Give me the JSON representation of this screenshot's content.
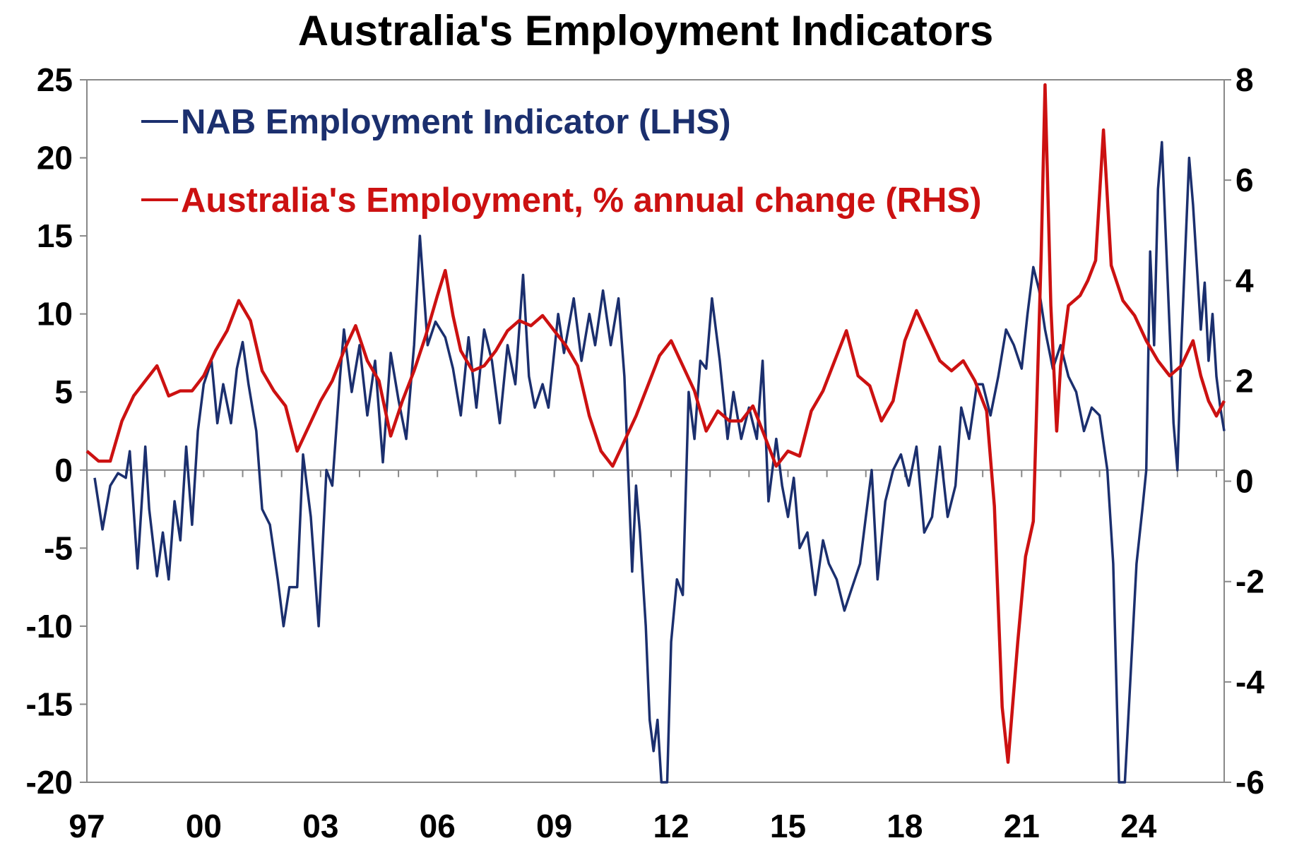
{
  "title": "Australia's Employment Indicators",
  "colors": {
    "nab": "#1b2f6e",
    "employment": "#cc1111",
    "axis": "#888888"
  },
  "chart_data": {
    "type": "line",
    "title": "Australia's Employment Indicators",
    "xlabel": "",
    "ylabel_left": "",
    "ylabel_right": "",
    "x_range": [
      1997.0,
      2026.2
    ],
    "x_ticks": [
      {
        "x": 1997,
        "label": "97"
      },
      {
        "x": 2000,
        "label": "00"
      },
      {
        "x": 2003,
        "label": "03"
      },
      {
        "x": 2006,
        "label": "06"
      },
      {
        "x": 2009,
        "label": "09"
      },
      {
        "x": 2012,
        "label": "12"
      },
      {
        "x": 2015,
        "label": "15"
      },
      {
        "x": 2018,
        "label": "18"
      },
      {
        "x": 2021,
        "label": "21"
      },
      {
        "x": 2024,
        "label": "24"
      }
    ],
    "ylim_left": [
      -20,
      25
    ],
    "ylim_right": [
      -6,
      8
    ],
    "yticks_left": [
      "25",
      "20",
      "15",
      "10",
      "5",
      "0",
      "-5",
      "-10",
      "-15",
      "-20"
    ],
    "yticks_right": [
      "8",
      "6",
      "4",
      "2",
      "0",
      "-2",
      "-4",
      "-6"
    ],
    "legend_position": "top-left",
    "grid": false,
    "series": [
      {
        "name": "NAB Employment Indicator (LHS)",
        "axis": "left",
        "color": "#1b2f6e",
        "points": [
          [
            1997.2,
            -0.5
          ],
          [
            1997.4,
            -3.8
          ],
          [
            1997.6,
            -1
          ],
          [
            1997.8,
            -0.2
          ],
          [
            1998.0,
            -0.5
          ],
          [
            1998.1,
            1.2
          ],
          [
            1998.3,
            -6.3
          ],
          [
            1998.5,
            1.5
          ],
          [
            1998.6,
            -2.5
          ],
          [
            1998.8,
            -6.8
          ],
          [
            1998.95,
            -4
          ],
          [
            1999.1,
            -7
          ],
          [
            1999.25,
            -2
          ],
          [
            1999.4,
            -4.5
          ],
          [
            1999.55,
            1.5
          ],
          [
            1999.7,
            -3.5
          ],
          [
            1999.85,
            2.5
          ],
          [
            2000.0,
            5.5
          ],
          [
            2000.2,
            7
          ],
          [
            2000.35,
            3
          ],
          [
            2000.5,
            5.5
          ],
          [
            2000.7,
            3
          ],
          [
            2000.85,
            6.5
          ],
          [
            2001.0,
            8.2
          ],
          [
            2001.15,
            5.5
          ],
          [
            2001.35,
            2.5
          ],
          [
            2001.5,
            -2.5
          ],
          [
            2001.7,
            -3.5
          ],
          [
            2001.9,
            -7
          ],
          [
            2002.05,
            -10
          ],
          [
            2002.2,
            -7.5
          ],
          [
            2002.4,
            -7.5
          ],
          [
            2002.55,
            1
          ],
          [
            2002.75,
            -3
          ],
          [
            2002.95,
            -10
          ],
          [
            2003.15,
            0
          ],
          [
            2003.3,
            -1
          ],
          [
            2003.5,
            6
          ],
          [
            2003.6,
            9
          ],
          [
            2003.8,
            5
          ],
          [
            2004.0,
            8
          ],
          [
            2004.2,
            3.5
          ],
          [
            2004.4,
            7
          ],
          [
            2004.6,
            0.5
          ],
          [
            2004.8,
            7.5
          ],
          [
            2005.0,
            4.5
          ],
          [
            2005.2,
            2
          ],
          [
            2005.4,
            8
          ],
          [
            2005.55,
            15
          ],
          [
            2005.75,
            8
          ],
          [
            2005.95,
            9.5
          ],
          [
            2006.2,
            8.5
          ],
          [
            2006.4,
            6.5
          ],
          [
            2006.6,
            3.5
          ],
          [
            2006.8,
            8.5
          ],
          [
            2007.0,
            4
          ],
          [
            2007.2,
            9
          ],
          [
            2007.4,
            7
          ],
          [
            2007.6,
            3
          ],
          [
            2007.8,
            8
          ],
          [
            2008.0,
            5.5
          ],
          [
            2008.2,
            12.5
          ],
          [
            2008.35,
            6
          ],
          [
            2008.5,
            4
          ],
          [
            2008.7,
            5.5
          ],
          [
            2008.85,
            4
          ],
          [
            2009.1,
            10
          ],
          [
            2009.25,
            7.5
          ],
          [
            2009.5,
            11
          ],
          [
            2009.7,
            7
          ],
          [
            2009.9,
            10
          ],
          [
            2010.05,
            8
          ],
          [
            2010.25,
            11.5
          ],
          [
            2010.45,
            8
          ],
          [
            2010.65,
            11
          ],
          [
            2010.8,
            6
          ],
          [
            2011.0,
            -6.5
          ],
          [
            2011.1,
            -1
          ],
          [
            2011.2,
            -4
          ],
          [
            2011.35,
            -10
          ],
          [
            2011.45,
            -16
          ],
          [
            2011.55,
            -18
          ],
          [
            2011.65,
            -16
          ],
          [
            2011.75,
            -22
          ],
          [
            2011.9,
            -20
          ],
          [
            2012.0,
            -11
          ],
          [
            2012.15,
            -7
          ],
          [
            2012.3,
            -8
          ],
          [
            2012.45,
            5
          ],
          [
            2012.6,
            2
          ],
          [
            2012.75,
            7
          ],
          [
            2012.9,
            6.5
          ],
          [
            2013.05,
            11
          ],
          [
            2013.25,
            7
          ],
          [
            2013.45,
            2
          ],
          [
            2013.6,
            5
          ],
          [
            2013.8,
            2
          ],
          [
            2014.0,
            4
          ],
          [
            2014.2,
            2
          ],
          [
            2014.35,
            7
          ],
          [
            2014.5,
            -2
          ],
          [
            2014.7,
            2
          ],
          [
            2014.85,
            -1
          ],
          [
            2015.0,
            -3
          ],
          [
            2015.15,
            -0.5
          ],
          [
            2015.3,
            -5
          ],
          [
            2015.5,
            -4
          ],
          [
            2015.7,
            -8
          ],
          [
            2015.9,
            -4.5
          ],
          [
            2016.05,
            -6
          ],
          [
            2016.25,
            -7
          ],
          [
            2016.45,
            -9
          ],
          [
            2016.65,
            -7.5
          ],
          [
            2016.85,
            -6
          ],
          [
            2017.0,
            -3
          ],
          [
            2017.15,
            0
          ],
          [
            2017.3,
            -7
          ],
          [
            2017.5,
            -2
          ],
          [
            2017.7,
            0
          ],
          [
            2017.9,
            1
          ],
          [
            2018.1,
            -1
          ],
          [
            2018.3,
            1.5
          ],
          [
            2018.5,
            -4
          ],
          [
            2018.7,
            -3
          ],
          [
            2018.9,
            1.5
          ],
          [
            2019.1,
            -3
          ],
          [
            2019.3,
            -1
          ],
          [
            2019.45,
            4
          ],
          [
            2019.65,
            2
          ],
          [
            2019.85,
            5.5
          ],
          [
            2020.0,
            5.5
          ],
          [
            2020.2,
            3.5
          ],
          [
            2020.4,
            6
          ],
          [
            2020.6,
            9
          ],
          [
            2020.8,
            8
          ],
          [
            2021.0,
            6.5
          ],
          [
            2021.15,
            10
          ],
          [
            2021.3,
            13
          ],
          [
            2021.45,
            11.5
          ],
          [
            2021.6,
            9
          ],
          [
            2021.8,
            6.5
          ],
          [
            2022.0,
            8
          ],
          [
            2022.2,
            6
          ],
          [
            2022.4,
            5
          ],
          [
            2022.6,
            2.5
          ],
          [
            2022.8,
            4
          ],
          [
            2023.0,
            3.5
          ],
          [
            2023.2,
            0
          ],
          [
            2023.35,
            -6
          ],
          [
            2023.5,
            -20
          ],
          [
            2023.65,
            -21
          ],
          [
            2023.8,
            -13
          ],
          [
            2023.95,
            -6
          ],
          [
            2024.1,
            -2.5
          ],
          [
            2024.2,
            0
          ],
          [
            2024.3,
            14
          ],
          [
            2024.4,
            8
          ],
          [
            2024.5,
            18
          ],
          [
            2024.6,
            21
          ],
          [
            2024.7,
            15
          ],
          [
            2024.8,
            9
          ],
          [
            2024.9,
            3
          ],
          [
            2025.0,
            0
          ],
          [
            2025.1,
            8
          ],
          [
            2025.2,
            14
          ],
          [
            2025.3,
            20
          ],
          [
            2025.4,
            17
          ],
          [
            2025.5,
            13
          ],
          [
            2025.6,
            9
          ],
          [
            2025.7,
            12
          ],
          [
            2025.8,
            7
          ],
          [
            2025.9,
            10
          ],
          [
            2026.0,
            6
          ],
          [
            2026.1,
            4
          ],
          [
            2026.2,
            2.5
          ]
        ]
      },
      {
        "name": "Australia's Employment, % annual change (RHS)",
        "axis": "right",
        "color": "#cc1111",
        "points": [
          [
            1997.0,
            0.6
          ],
          [
            1997.3,
            0.4
          ],
          [
            1997.6,
            0.4
          ],
          [
            1997.9,
            1.2
          ],
          [
            1998.2,
            1.7
          ],
          [
            1998.5,
            2.0
          ],
          [
            1998.8,
            2.3
          ],
          [
            1999.1,
            1.7
          ],
          [
            1999.4,
            1.8
          ],
          [
            1999.7,
            1.8
          ],
          [
            2000.0,
            2.1
          ],
          [
            2000.3,
            2.6
          ],
          [
            2000.6,
            3.0
          ],
          [
            2000.9,
            3.6
          ],
          [
            2001.2,
            3.2
          ],
          [
            2001.5,
            2.2
          ],
          [
            2001.8,
            1.8
          ],
          [
            2002.1,
            1.5
          ],
          [
            2002.4,
            0.6
          ],
          [
            2002.7,
            1.1
          ],
          [
            2003.0,
            1.6
          ],
          [
            2003.3,
            2.0
          ],
          [
            2003.6,
            2.6
          ],
          [
            2003.9,
            3.1
          ],
          [
            2004.2,
            2.4
          ],
          [
            2004.5,
            2.0
          ],
          [
            2004.8,
            0.9
          ],
          [
            2005.1,
            1.6
          ],
          [
            2005.4,
            2.2
          ],
          [
            2005.7,
            2.9
          ],
          [
            2006.0,
            3.7
          ],
          [
            2006.2,
            4.2
          ],
          [
            2006.4,
            3.3
          ],
          [
            2006.6,
            2.6
          ],
          [
            2006.9,
            2.2
          ],
          [
            2007.2,
            2.3
          ],
          [
            2007.5,
            2.6
          ],
          [
            2007.8,
            3.0
          ],
          [
            2008.1,
            3.2
          ],
          [
            2008.4,
            3.1
          ],
          [
            2008.7,
            3.3
          ],
          [
            2009.0,
            3.0
          ],
          [
            2009.3,
            2.7
          ],
          [
            2009.6,
            2.3
          ],
          [
            2009.9,
            1.3
          ],
          [
            2010.2,
            0.6
          ],
          [
            2010.5,
            0.3
          ],
          [
            2010.8,
            0.8
          ],
          [
            2011.1,
            1.3
          ],
          [
            2011.4,
            1.9
          ],
          [
            2011.7,
            2.5
          ],
          [
            2012.0,
            2.8
          ],
          [
            2012.3,
            2.3
          ],
          [
            2012.6,
            1.8
          ],
          [
            2012.9,
            1.0
          ],
          [
            2013.2,
            1.4
          ],
          [
            2013.5,
            1.2
          ],
          [
            2013.8,
            1.2
          ],
          [
            2014.1,
            1.5
          ],
          [
            2014.4,
            0.9
          ],
          [
            2014.7,
            0.3
          ],
          [
            2015.0,
            0.6
          ],
          [
            2015.3,
            0.5
          ],
          [
            2015.6,
            1.4
          ],
          [
            2015.9,
            1.8
          ],
          [
            2016.2,
            2.4
          ],
          [
            2016.5,
            3.0
          ],
          [
            2016.8,
            2.1
          ],
          [
            2017.1,
            1.9
          ],
          [
            2017.4,
            1.2
          ],
          [
            2017.7,
            1.6
          ],
          [
            2018.0,
            2.8
          ],
          [
            2018.3,
            3.4
          ],
          [
            2018.6,
            2.9
          ],
          [
            2018.9,
            2.4
          ],
          [
            2019.2,
            2.2
          ],
          [
            2019.5,
            2.4
          ],
          [
            2019.8,
            2.0
          ],
          [
            2020.1,
            1.4
          ],
          [
            2020.3,
            -0.5
          ],
          [
            2020.5,
            -4.5
          ],
          [
            2020.65,
            -5.6
          ],
          [
            2020.9,
            -3.2
          ],
          [
            2021.1,
            -1.5
          ],
          [
            2021.3,
            -0.8
          ],
          [
            2021.5,
            4.5
          ],
          [
            2021.6,
            7.9
          ],
          [
            2021.75,
            3.5
          ],
          [
            2021.9,
            1.0
          ],
          [
            2022.0,
            2.3
          ],
          [
            2022.2,
            3.5
          ],
          [
            2022.5,
            3.7
          ],
          [
            2022.7,
            4.0
          ],
          [
            2022.9,
            4.4
          ],
          [
            2023.1,
            7.0
          ],
          [
            2023.3,
            4.3
          ],
          [
            2023.6,
            3.6
          ],
          [
            2023.9,
            3.3
          ],
          [
            2024.2,
            2.8
          ],
          [
            2024.5,
            2.4
          ],
          [
            2024.8,
            2.1
          ],
          [
            2025.1,
            2.3
          ],
          [
            2025.4,
            2.8
          ],
          [
            2025.6,
            2.1
          ],
          [
            2025.8,
            1.6
          ],
          [
            2026.0,
            1.3
          ],
          [
            2026.2,
            1.6
          ]
        ]
      }
    ]
  }
}
